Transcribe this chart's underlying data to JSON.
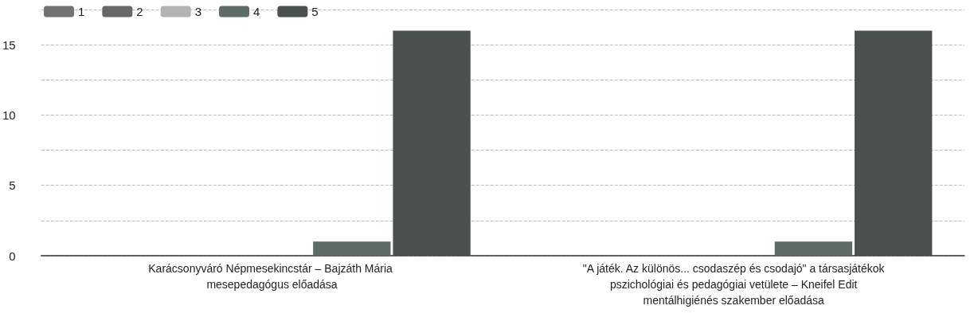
{
  "chart_data": {
    "type": "bar",
    "categories": [
      "Karácsonyváró Népmesekincstár – Bajzáth Mária mesepedagógus előadása",
      "\"A játék. Az különös... csodaszép és csodajó\" a társasjátékok pszichológiai és pedagógiai vetülete – Kneifel Edit mentálhigiénés szakember előadása"
    ],
    "series": [
      {
        "name": "1",
        "color": "#727272",
        "values": [
          0,
          0
        ]
      },
      {
        "name": "2",
        "color": "#686868",
        "values": [
          0,
          0
        ]
      },
      {
        "name": "3",
        "color": "#b3b3b3",
        "values": [
          0,
          0
        ]
      },
      {
        "name": "4",
        "color": "#5f6b67",
        "values": [
          1,
          1
        ]
      },
      {
        "name": "5",
        "color": "#4a524f",
        "values": [
          16,
          16
        ]
      }
    ],
    "ylim": [
      0,
      17.5
    ],
    "yticks": [
      0,
      {
        "value": 2.5,
        "label": null
      },
      5,
      {
        "value": 7.5,
        "label": null
      },
      10,
      {
        "value": 12.5,
        "label": null
      },
      15,
      {
        "value": 17.5,
        "label": null
      }
    ],
    "grid": "y",
    "legend": "top left"
  }
}
